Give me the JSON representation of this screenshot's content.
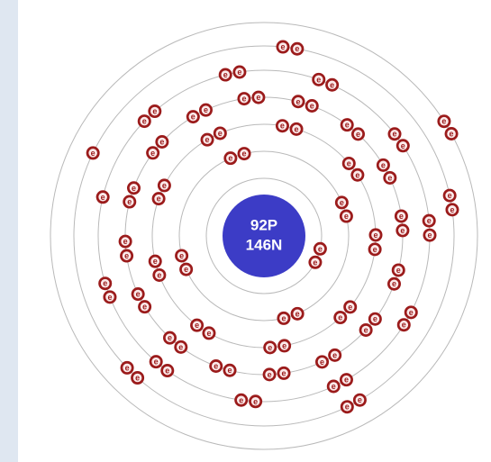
{
  "nucleus": {
    "protons": "92P",
    "neutrons": "146N"
  },
  "electron_label": "e",
  "shell_electrons": [
    2,
    8,
    18,
    32,
    21,
    9,
    2
  ]
}
